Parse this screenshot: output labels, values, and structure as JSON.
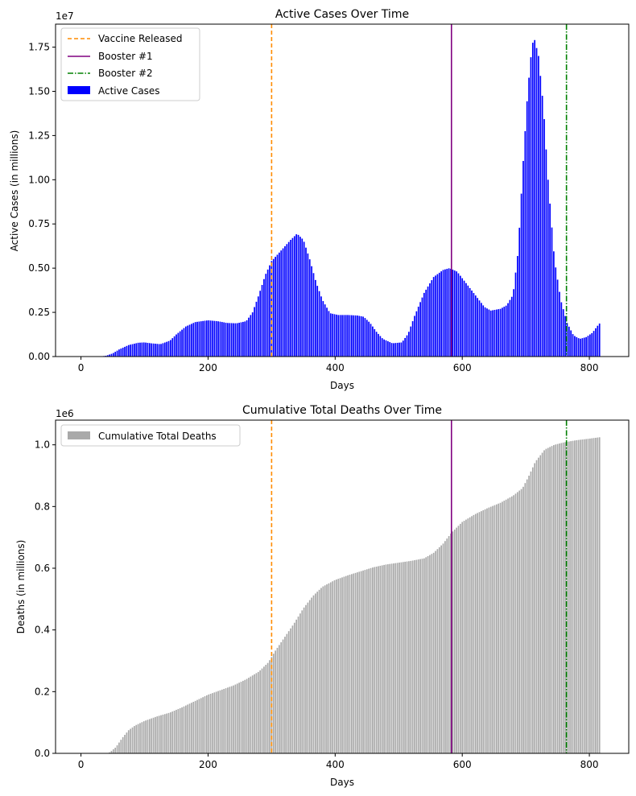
{
  "chart_data": [
    {
      "type": "bar",
      "title": "Active Cases Over Time",
      "xlabel": "Days",
      "ylabel": "Active Cases (in millions)",
      "y_scale_label": "1e7",
      "xlim": [
        -40,
        862
      ],
      "ylim": [
        0,
        18800000
      ],
      "x_ticks": [
        0,
        200,
        400,
        600,
        800
      ],
      "y_ticks": [
        0,
        2500000,
        5000000,
        7500000,
        10000000,
        12500000,
        15000000,
        17500000
      ],
      "y_tick_labels": [
        "0.00",
        "0.25",
        "0.50",
        "0.75",
        "1.00",
        "1.25",
        "1.50",
        "1.75"
      ],
      "x_tick_labels": [
        "0",
        "200",
        "400",
        "600",
        "800"
      ],
      "series": [
        {
          "name": "Active Cases",
          "color": "#0000ff",
          "kind": "bar",
          "x_start": 0,
          "x_end": 818,
          "x_step": 3,
          "curve_points": [
            [
              0,
              0
            ],
            [
              30,
              0
            ],
            [
              40,
              50000
            ],
            [
              50,
              180000
            ],
            [
              60,
              400000
            ],
            [
              75,
              650000
            ],
            [
              90,
              780000
            ],
            [
              100,
              800000
            ],
            [
              110,
              750000
            ],
            [
              125,
              700000
            ],
            [
              140,
              900000
            ],
            [
              150,
              1250000
            ],
            [
              165,
              1700000
            ],
            [
              180,
              1950000
            ],
            [
              200,
              2050000
            ],
            [
              215,
              2000000
            ],
            [
              230,
              1900000
            ],
            [
              245,
              1880000
            ],
            [
              260,
              2000000
            ],
            [
              270,
              2500000
            ],
            [
              280,
              3500000
            ],
            [
              290,
              4600000
            ],
            [
              300,
              5400000
            ],
            [
              315,
              6000000
            ],
            [
              330,
              6600000
            ],
            [
              340,
              6950000
            ],
            [
              350,
              6600000
            ],
            [
              360,
              5500000
            ],
            [
              370,
              4200000
            ],
            [
              380,
              3200000
            ],
            [
              392,
              2450000
            ],
            [
              405,
              2350000
            ],
            [
              420,
              2350000
            ],
            [
              435,
              2320000
            ],
            [
              445,
              2250000
            ],
            [
              455,
              1900000
            ],
            [
              465,
              1400000
            ],
            [
              475,
              1000000
            ],
            [
              490,
              750000
            ],
            [
              505,
              800000
            ],
            [
              515,
              1300000
            ],
            [
              525,
              2300000
            ],
            [
              540,
              3600000
            ],
            [
              555,
              4500000
            ],
            [
              570,
              4900000
            ],
            [
              580,
              5000000
            ],
            [
              592,
              4800000
            ],
            [
              605,
              4200000
            ],
            [
              620,
              3500000
            ],
            [
              635,
              2800000
            ],
            [
              645,
              2600000
            ],
            [
              660,
              2700000
            ],
            [
              670,
              2900000
            ],
            [
              680,
              3500000
            ],
            [
              688,
              6000000
            ],
            [
              695,
              10500000
            ],
            [
              703,
              15000000
            ],
            [
              710,
              17700000
            ],
            [
              714,
              17900000
            ],
            [
              720,
              17000000
            ],
            [
              728,
              14000000
            ],
            [
              735,
              10000000
            ],
            [
              745,
              5500000
            ],
            [
              755,
              3200000
            ],
            [
              765,
              1900000
            ],
            [
              775,
              1200000
            ],
            [
              785,
              1000000
            ],
            [
              795,
              1100000
            ],
            [
              805,
              1350000
            ],
            [
              812,
              1700000
            ],
            [
              818,
              1950000
            ]
          ]
        }
      ],
      "vlines": [
        {
          "name": "Vaccine Released",
          "x": 300,
          "color": "#ff8c00",
          "style": "dashed"
        },
        {
          "name": "Booster #1",
          "x": 583,
          "color": "#800080",
          "style": "solid"
        },
        {
          "name": "Booster #2",
          "x": 764,
          "color": "#008000",
          "style": "dashdot"
        }
      ],
      "legend": {
        "placement": "top-left",
        "entries": [
          {
            "label": "Vaccine Released",
            "color": "#ff8c00",
            "style": "dashed"
          },
          {
            "label": "Booster #1",
            "color": "#800080",
            "style": "solid"
          },
          {
            "label": "Booster #2",
            "color": "#008000",
            "style": "dashdot"
          },
          {
            "label": "Active Cases",
            "color": "#0000ff",
            "style": "patch"
          }
        ]
      }
    },
    {
      "type": "bar",
      "title": "Cumulative Total Deaths Over Time",
      "xlabel": "Days",
      "ylabel": "Deaths (in millions)",
      "y_scale_label": "1e6",
      "xlim": [
        -40,
        862
      ],
      "ylim": [
        0,
        1080000
      ],
      "x_ticks": [
        0,
        200,
        400,
        600,
        800
      ],
      "y_ticks": [
        0,
        200000,
        400000,
        600000,
        800000,
        1000000
      ],
      "y_tick_labels": [
        "0.0",
        "0.2",
        "0.4",
        "0.6",
        "0.8",
        "1.0"
      ],
      "x_tick_labels": [
        "0",
        "200",
        "400",
        "600",
        "800"
      ],
      "series": [
        {
          "name": "Cumulative Total Deaths",
          "color": "#a9a9a9",
          "kind": "bar",
          "x_start": 0,
          "x_end": 818,
          "x_step": 3,
          "curve_points": [
            [
              0,
              0
            ],
            [
              40,
              0
            ],
            [
              45,
              3000
            ],
            [
              55,
              20000
            ],
            [
              65,
              50000
            ],
            [
              75,
              75000
            ],
            [
              85,
              90000
            ],
            [
              100,
              105000
            ],
            [
              120,
              120000
            ],
            [
              140,
              132000
            ],
            [
              160,
              150000
            ],
            [
              180,
              170000
            ],
            [
              200,
              190000
            ],
            [
              220,
              205000
            ],
            [
              240,
              220000
            ],
            [
              260,
              240000
            ],
            [
              280,
              265000
            ],
            [
              295,
              295000
            ],
            [
              305,
              330000
            ],
            [
              320,
              375000
            ],
            [
              335,
              420000
            ],
            [
              350,
              470000
            ],
            [
              365,
              510000
            ],
            [
              380,
              540000
            ],
            [
              400,
              562000
            ],
            [
              420,
              577000
            ],
            [
              440,
              590000
            ],
            [
              460,
              603000
            ],
            [
              480,
              612000
            ],
            [
              500,
              618000
            ],
            [
              520,
              624000
            ],
            [
              540,
              632000
            ],
            [
              555,
              650000
            ],
            [
              570,
              680000
            ],
            [
              583,
              715000
            ],
            [
              600,
              750000
            ],
            [
              620,
              775000
            ],
            [
              640,
              795000
            ],
            [
              660,
              812000
            ],
            [
              680,
              835000
            ],
            [
              695,
              860000
            ],
            [
              705,
              900000
            ],
            [
              715,
              945000
            ],
            [
              730,
              985000
            ],
            [
              745,
              1000000
            ],
            [
              760,
              1008000
            ],
            [
              780,
              1015000
            ],
            [
              800,
              1020000
            ],
            [
              818,
              1025000
            ]
          ]
        }
      ],
      "vlines": [
        {
          "name": "Vaccine Released",
          "x": 300,
          "color": "#ff8c00",
          "style": "dashed"
        },
        {
          "name": "Booster #1",
          "x": 583,
          "color": "#800080",
          "style": "solid"
        },
        {
          "name": "Booster #2",
          "x": 764,
          "color": "#008000",
          "style": "dashdot"
        }
      ],
      "legend": {
        "placement": "top-left",
        "entries": [
          {
            "label": "Cumulative Total Deaths",
            "color": "#a9a9a9",
            "style": "patch"
          }
        ]
      }
    }
  ]
}
